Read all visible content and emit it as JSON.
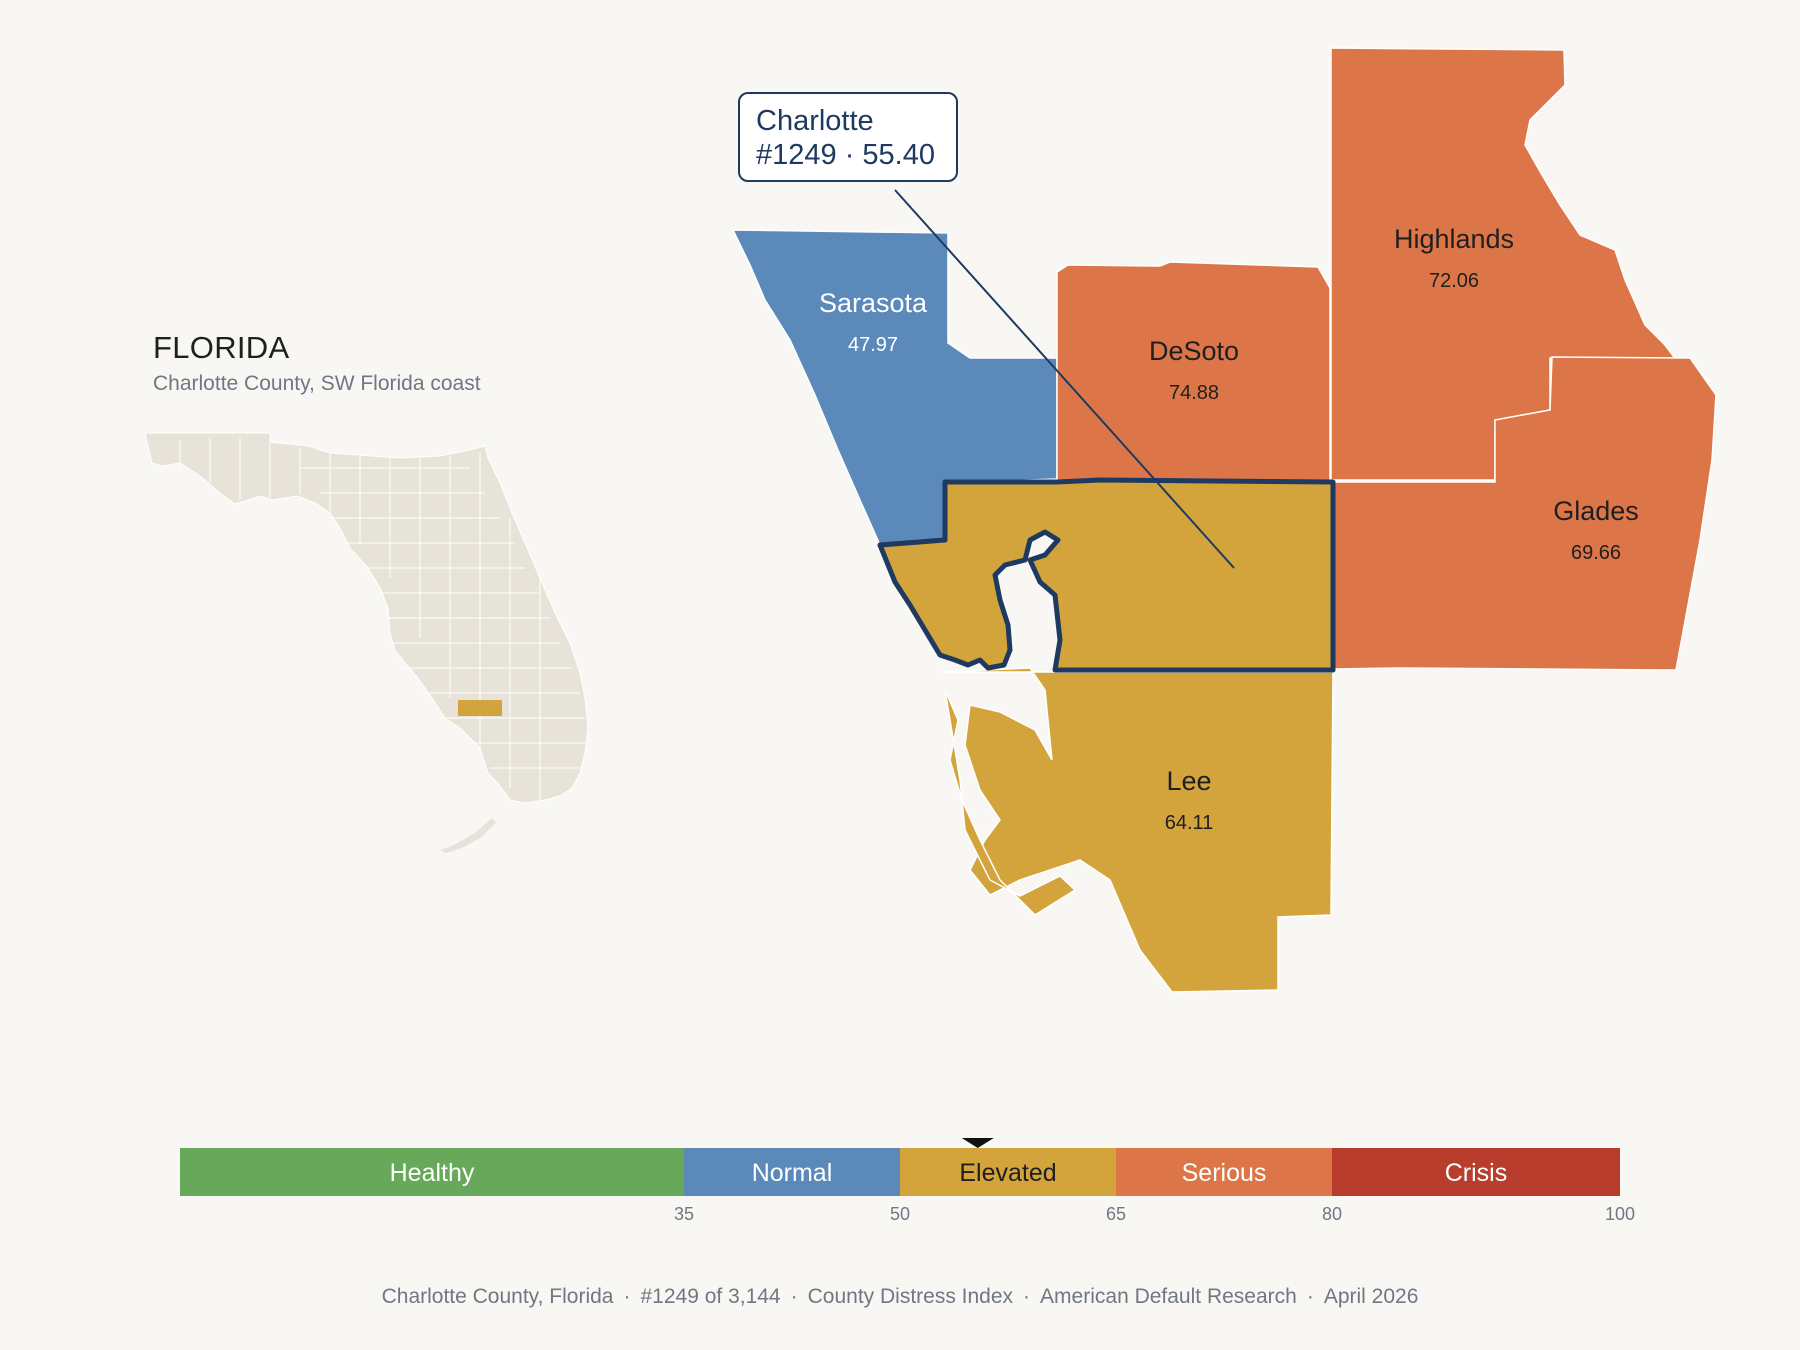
{
  "state": {
    "title": "FLORIDA",
    "subtitle": "Charlotte County, SW Florida coast"
  },
  "callout": {
    "name": "Charlotte",
    "detail": "#1249 · 55.40"
  },
  "counties": [
    {
      "key": "sarasota",
      "name": "Sarasota",
      "score": "47.97",
      "color": "#5b8aba"
    },
    {
      "key": "desoto",
      "name": "DeSoto",
      "score": "74.88",
      "color": "#dc7649"
    },
    {
      "key": "highlands",
      "name": "Highlands",
      "score": "72.06",
      "color": "#dc7649"
    },
    {
      "key": "glades",
      "name": "Glades",
      "score": "69.66",
      "color": "#dc7649"
    },
    {
      "key": "lee",
      "name": "Lee",
      "score": "64.11",
      "color": "#d4a43c"
    },
    {
      "key": "charlotte",
      "name": "Charlotte",
      "score": "55.40",
      "color": "#d4a43c",
      "selected": true
    }
  ],
  "scale": {
    "min": 0,
    "max": 100,
    "marker_value": 55.4,
    "bands": [
      {
        "label": "Healthy",
        "from": 0,
        "to": 35,
        "color": "#67a85a"
      },
      {
        "label": "Normal",
        "from": 35,
        "to": 50,
        "color": "#5b8aba"
      },
      {
        "label": "Elevated",
        "from": 50,
        "to": 65,
        "color": "#d4a43c"
      },
      {
        "label": "Serious",
        "from": 65,
        "to": 80,
        "color": "#dc7649"
      },
      {
        "label": "Crisis",
        "from": 80,
        "to": 100,
        "color": "#b83d2c"
      }
    ],
    "ticks": [
      "35",
      "50",
      "65",
      "80",
      "100"
    ]
  },
  "footer": {
    "county": "Charlotte County, Florida",
    "rank": "#1249 of 3,144",
    "index": "County Distress Index",
    "source": "American Default Research",
    "date": "April 2026"
  },
  "colors": {
    "background": "#f9f7f3",
    "inset_land": "#e8e3d9",
    "highlight_outline": "#1f3a60",
    "water": "#f9f7f3"
  }
}
